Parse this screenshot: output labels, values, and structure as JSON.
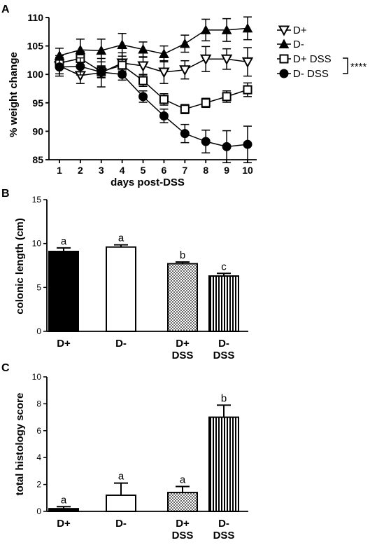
{
  "chart_data": [
    {
      "panel_label": "A",
      "type": "line",
      "xlabel": "days post-DSS",
      "ylabel": "% weight change",
      "x": [
        1,
        2,
        3,
        4,
        5,
        6,
        7,
        8,
        9,
        10
      ],
      "ylim": [
        85,
        110
      ],
      "yticks": [
        85,
        90,
        95,
        100,
        105,
        110
      ],
      "series": [
        {
          "name": "D+",
          "marker": "triangle-down-open",
          "values": [
            101.5,
            99.8,
            100.3,
            102.0,
            101.5,
            100.4,
            100.8,
            102.7,
            102.7,
            102.2
          ],
          "errors": [
            1.8,
            1.4,
            2.5,
            1.8,
            1.5,
            2.0,
            1.6,
            2.2,
            1.8,
            2.5
          ]
        },
        {
          "name": "D-",
          "marker": "triangle-up-filled",
          "values": [
            103.3,
            104.3,
            104.2,
            105.2,
            104.4,
            103.6,
            105.4,
            107.8,
            107.8,
            108.1
          ],
          "errors": [
            1.3,
            1.9,
            2.0,
            2.0,
            1.3,
            1.4,
            1.5,
            1.9,
            2.0,
            2.0
          ]
        },
        {
          "name": "D+ DSS",
          "marker": "square-open",
          "values": [
            102.0,
            102.8,
            100.5,
            101.6,
            98.9,
            95.6,
            93.9,
            95.0,
            96.1,
            97.3
          ],
          "errors": [
            1.0,
            1.2,
            1.0,
            1.0,
            1.0,
            1.0,
            0.8,
            0.8,
            1.0,
            1.2
          ]
        },
        {
          "name": "D- DSS",
          "marker": "circle-filled",
          "values": [
            101.3,
            101.4,
            100.4,
            100.0,
            96.1,
            92.7,
            89.6,
            88.2,
            87.3,
            87.7
          ],
          "errors": [
            1.2,
            1.5,
            1.0,
            1.0,
            1.0,
            1.2,
            1.6,
            2.0,
            2.8,
            3.2
          ]
        }
      ],
      "legend_position": "right",
      "annotation": "****"
    },
    {
      "panel_label": "B",
      "type": "bar",
      "ylabel": "colonic length (cm)",
      "categories": [
        [
          "D+"
        ],
        [
          "D-"
        ],
        [
          "D+",
          "DSS"
        ],
        [
          "D-",
          "DSS"
        ]
      ],
      "values": [
        9.1,
        9.6,
        7.7,
        6.3
      ],
      "errors": [
        0.4,
        0.25,
        0.2,
        0.3
      ],
      "letters": [
        "a",
        "a",
        "b",
        "c"
      ],
      "fills": [
        "solid-black",
        "white",
        "dotted",
        "vertical-stripes"
      ],
      "ylim": [
        0,
        15
      ],
      "yticks": [
        0,
        5,
        10,
        15
      ]
    },
    {
      "panel_label": "C",
      "type": "bar",
      "ylabel": "total histology score",
      "categories": [
        [
          "D+"
        ],
        [
          "D-"
        ],
        [
          "D+",
          "DSS"
        ],
        [
          "D-",
          "DSS"
        ]
      ],
      "values": [
        0.2,
        1.2,
        1.4,
        7.0
      ],
      "errors": [
        0.15,
        0.9,
        0.45,
        0.9
      ],
      "letters": [
        "a",
        "a",
        "a",
        "b"
      ],
      "fills": [
        "solid-black",
        "white",
        "dotted",
        "vertical-stripes"
      ],
      "ylim": [
        0,
        10
      ],
      "yticks": [
        0,
        2,
        4,
        6,
        8,
        10
      ]
    }
  ]
}
